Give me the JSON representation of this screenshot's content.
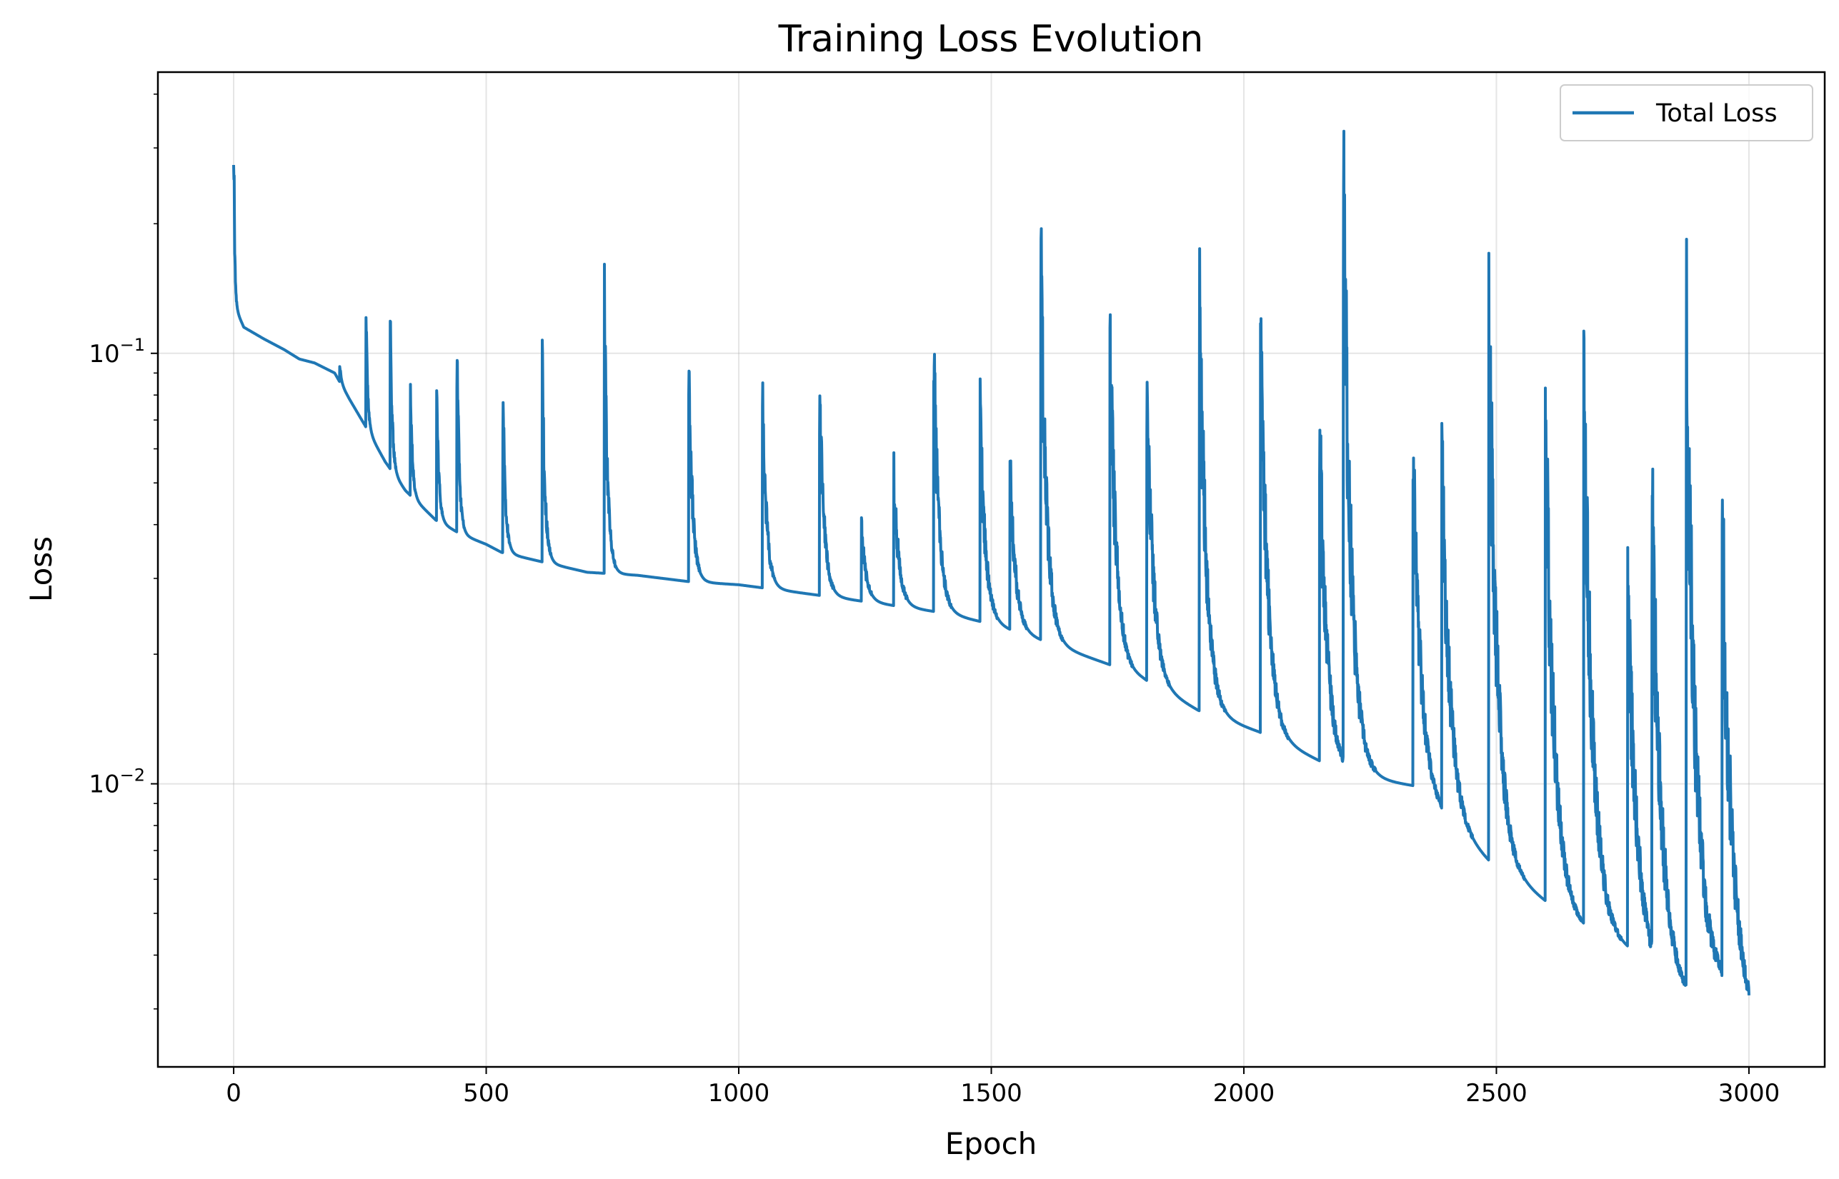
{
  "chart_data": {
    "type": "line",
    "title": "Training Loss Evolution",
    "xlabel": "Epoch",
    "ylabel": "Loss",
    "xlim": [
      -150,
      3150
    ],
    "ylim": [
      0.0022,
      0.45
    ],
    "yscale": "log",
    "grid": true,
    "legend_position": "top-right",
    "x_ticks": [
      0,
      500,
      1000,
      1500,
      2000,
      2500,
      3000
    ],
    "x_tick_labels": [
      "0",
      "500",
      "1000",
      "1500",
      "2000",
      "2500",
      "3000"
    ],
    "y_ticks": [
      0.01,
      0.1
    ],
    "y_tick_labels": [
      {
        "base": "10",
        "exp": "−2"
      },
      {
        "base": "10",
        "exp": "−1"
      }
    ],
    "series": [
      {
        "name": "Total Loss",
        "color": "#1f77b4",
        "base_points": [
          [
            0,
            0.13
          ],
          [
            20,
            0.115
          ],
          [
            60,
            0.108
          ],
          [
            100,
            0.102
          ],
          [
            130,
            0.097
          ],
          [
            160,
            0.095
          ],
          [
            200,
            0.09
          ],
          [
            230,
            0.078
          ],
          [
            260,
            0.068
          ],
          [
            300,
            0.056
          ],
          [
            340,
            0.048
          ],
          [
            400,
            0.041
          ],
          [
            450,
            0.038
          ],
          [
            500,
            0.036
          ],
          [
            530,
            0.0345
          ],
          [
            600,
            0.033
          ],
          [
            700,
            0.031
          ],
          [
            800,
            0.0305
          ],
          [
            900,
            0.0295
          ],
          [
            1000,
            0.029
          ],
          [
            1100,
            0.028
          ],
          [
            1200,
            0.027
          ],
          [
            1300,
            0.026
          ],
          [
            1400,
            0.025
          ],
          [
            1500,
            0.0235
          ],
          [
            1600,
            0.0215
          ],
          [
            1735,
            0.0189
          ],
          [
            1800,
            0.0175
          ],
          [
            1910,
            0.0148
          ],
          [
            2030,
            0.0132
          ],
          [
            2150,
            0.0113
          ],
          [
            2200,
            0.0105
          ],
          [
            2335,
            0.0099
          ],
          [
            2400,
            0.0082
          ],
          [
            2485,
            0.0066
          ],
          [
            2600,
            0.0053
          ],
          [
            2670,
            0.0046
          ],
          [
            2760,
            0.0041
          ],
          [
            2810,
            0.0036
          ],
          [
            2870,
            0.0032
          ],
          [
            2940,
            0.0034
          ],
          [
            3000,
            0.0028
          ]
        ],
        "spikes": [
          [
            0,
            0.34
          ],
          [
            210,
            0.094
          ],
          [
            262,
            0.118
          ],
          [
            310,
            0.121
          ],
          [
            350,
            0.081
          ],
          [
            402,
            0.08
          ],
          [
            442,
            0.102
          ],
          [
            533,
            0.077
          ],
          [
            611,
            0.089
          ],
          [
            734,
            0.124
          ],
          [
            901,
            0.093
          ],
          [
            1047,
            0.077
          ],
          [
            1160,
            0.079
          ],
          [
            1243,
            0.039
          ],
          [
            1307,
            0.052
          ],
          [
            1386,
            0.096
          ],
          [
            1478,
            0.07
          ],
          [
            1537,
            0.053
          ],
          [
            1598,
            0.158
          ],
          [
            1735,
            0.105
          ],
          [
            1808,
            0.085
          ],
          [
            1912,
            0.138
          ],
          [
            2033,
            0.122
          ],
          [
            2150,
            0.061
          ],
          [
            2197,
            0.255
          ],
          [
            2335,
            0.057
          ],
          [
            2392,
            0.057
          ],
          [
            2485,
            0.122
          ],
          [
            2597,
            0.068
          ],
          [
            2673,
            0.084
          ],
          [
            2760,
            0.027
          ],
          [
            2808,
            0.04
          ],
          [
            2876,
            0.109
          ],
          [
            2947,
            0.037
          ]
        ]
      }
    ]
  }
}
